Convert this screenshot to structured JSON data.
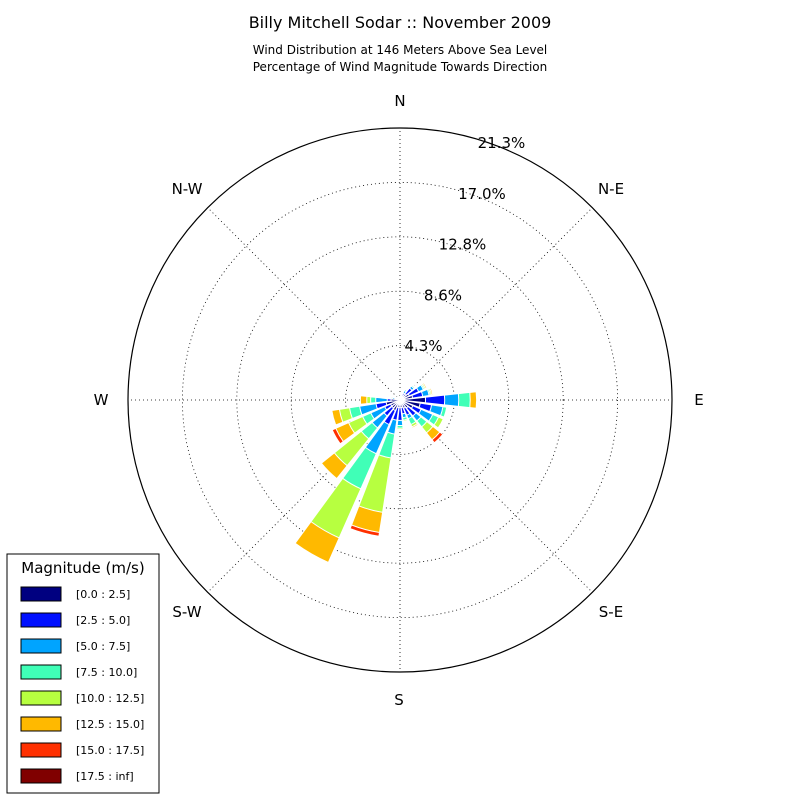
{
  "chart_data": {
    "type": "windrose",
    "title": "Billy Mitchell Sodar :: November 2009",
    "subtitle_lines": [
      "Wind Distribution at 146 Meters Above Sea Level",
      "Percentage of Wind Magnitude Towards Direction"
    ],
    "directions": [
      "N",
      "N-E",
      "E",
      "S-E",
      "S",
      "S-W",
      "W",
      "N-W"
    ],
    "radial_tick_labels": [
      "4.3%",
      "8.6%",
      "12.8%",
      "17.0%",
      "21.3%"
    ],
    "radial_ticks": [
      4.26,
      8.52,
      12.78,
      17.04,
      21.3
    ],
    "rmax": 21.3,
    "bin_angles_deg_cw_from_north": [
      0,
      15,
      30,
      45,
      60,
      75,
      90,
      105,
      120,
      135,
      150,
      165,
      180,
      195,
      210,
      225,
      240,
      255,
      270,
      285,
      300,
      315,
      330,
      345
    ],
    "legend": {
      "title": "Magnitude (m/s)",
      "entries": [
        {
          "label": "[0.0 : 2.5]",
          "color": "#000080"
        },
        {
          "label": "[2.5 : 5.0]",
          "color": "#0010ff"
        },
        {
          "label": "[5.0 : 7.5]",
          "color": "#00a4ff"
        },
        {
          "label": "[7.5 : 10.0]",
          "color": "#40ffb7"
        },
        {
          "label": "[10.0 : 12.5]",
          "color": "#b7ff40"
        },
        {
          "label": "[12.5 : 15.0]",
          "color": "#ffb900"
        },
        {
          "label": "[15.0 : 17.5]",
          "color": "#ff3000"
        },
        {
          "label": "[17.5 : inf]",
          "color": "#800000"
        }
      ]
    },
    "series_cumulative": [
      [
        0.1,
        0.2,
        0.3,
        0.6,
        0.8,
        1.0,
        2.0,
        1.6,
        1.1,
        0.8,
        0.7,
        0.6,
        0.6,
        0.6,
        0.9,
        0.8,
        0.8,
        1.1,
        0.7,
        0.3,
        0.3,
        0.2,
        0.1,
        0.1
      ],
      [
        0.15,
        0.3,
        0.6,
        1.2,
        1.6,
        1.8,
        3.5,
        2.5,
        1.8,
        1.6,
        1.3,
        1.1,
        1.6,
        1.6,
        2.1,
        1.6,
        1.3,
        1.9,
        1.0,
        0.4,
        0.3,
        0.25,
        0.15,
        0.1
      ],
      [
        0.2,
        0.4,
        0.8,
        1.4,
        2.0,
        2.3,
        4.6,
        3.4,
        2.8,
        2.1,
        1.6,
        1.4,
        2.0,
        2.7,
        4.6,
        2.8,
        2.5,
        3.2,
        1.9,
        0.6,
        0.4,
        0.3,
        0.2,
        0.15
      ],
      [
        0.2,
        0.45,
        0.9,
        1.5,
        2.1,
        2.4,
        5.5,
        3.7,
        3.3,
        2.7,
        2.1,
        1.6,
        2.2,
        4.6,
        7.6,
        3.9,
        3.2,
        4.0,
        2.3,
        0.7,
        0.45,
        0.3,
        0.2,
        0.15
      ],
      [
        0.2,
        0.5,
        0.95,
        1.55,
        2.2,
        2.5,
        5.5,
        3.7,
        3.7,
        3.3,
        2.3,
        1.7,
        2.3,
        8.9,
        11.8,
        6.6,
        4.4,
        4.8,
        2.6,
        0.75,
        0.5,
        0.3,
        0.2,
        0.15
      ],
      [
        0.2,
        0.55,
        1.0,
        1.6,
        2.3,
        2.6,
        6.0,
        3.7,
        3.7,
        4.0,
        2.4,
        1.7,
        2.3,
        10.5,
        13.9,
        7.9,
        5.5,
        5.4,
        3.1,
        0.8,
        0.55,
        0.3,
        0.2,
        0.15
      ],
      [
        0.2,
        0.55,
        1.0,
        1.6,
        2.3,
        2.6,
        6.0,
        3.7,
        3.7,
        4.3,
        2.4,
        1.7,
        2.3,
        10.8,
        13.9,
        7.9,
        5.8,
        5.4,
        3.1,
        0.8,
        0.55,
        0.3,
        0.2,
        0.15
      ],
      [
        0.2,
        0.55,
        1.0,
        1.6,
        2.3,
        2.6,
        6.0,
        3.7,
        3.7,
        4.3,
        2.4,
        1.7,
        2.3,
        10.8,
        13.9,
        7.9,
        5.8,
        5.4,
        3.1,
        0.8,
        0.55,
        0.3,
        0.2,
        0.15
      ]
    ]
  }
}
